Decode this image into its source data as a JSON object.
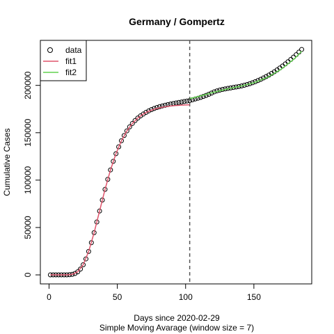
{
  "chart_data": {
    "type": "scatter",
    "title": "Germany / Gompertz",
    "xlabel": "Days since 2020-02-29",
    "subtitle": "Simple Moving Avarage (window size = 7)",
    "ylabel": "Cumulative Cases",
    "xlim": [
      -6.36,
      192.36
    ],
    "ylim": [
      -9520,
      247500
    ],
    "xticks": [
      0,
      50,
      100,
      150
    ],
    "yticks": [
      0,
      50000,
      100000,
      150000,
      200000
    ],
    "vline": 103,
    "legend": "top-left",
    "series": [
      {
        "name": "data",
        "kind": "points",
        "color": "#000000",
        "x": [
          1,
          3,
          5,
          7,
          9,
          11,
          13,
          15,
          17,
          19,
          21,
          23,
          25,
          27,
          29,
          31,
          33,
          35,
          37,
          39,
          41,
          43,
          45,
          47,
          49,
          51,
          53,
          55,
          57,
          59,
          61,
          63,
          65,
          67,
          69,
          71,
          73,
          75,
          77,
          79,
          81,
          83,
          85,
          87,
          89,
          91,
          93,
          95,
          97,
          99,
          101,
          103,
          105,
          107,
          109,
          111,
          113,
          115,
          117,
          119,
          121,
          123,
          125,
          127,
          129,
          131,
          133,
          135,
          137,
          139,
          141,
          143,
          145,
          147,
          149,
          151,
          153,
          155,
          157,
          159,
          161,
          163,
          165,
          167,
          169,
          171,
          173,
          175,
          177,
          179,
          181,
          183,
          185
        ],
        "values": [
          0,
          0,
          0,
          0,
          2,
          11,
          53,
          198,
          595,
          1495,
          3240,
          6200,
          10670,
          16860,
          24710,
          34010,
          44520,
          55800,
          67370,
          78980,
          90230,
          100840,
          110760,
          119790,
          127920,
          135120,
          141550,
          147080,
          151980,
          156180,
          159790,
          162890,
          165530,
          167800,
          169710,
          171520,
          173100,
          174460,
          175640,
          176660,
          177550,
          178330,
          179020,
          179640,
          180290,
          180880,
          181430,
          181920,
          182400,
          182950,
          183470,
          183970,
          184800,
          185600,
          186400,
          187300,
          188300,
          189400,
          190600,
          191900,
          193200,
          194200,
          195000,
          195700,
          196300,
          196800,
          197300,
          197800,
          198300,
          198800,
          199400,
          200100,
          200900,
          201800,
          202800,
          203900,
          205100,
          206400,
          207800,
          209300,
          210900,
          212600,
          214400,
          216300,
          218300,
          220400,
          222600,
          224900,
          227300,
          229800,
          232400,
          235100,
          237900
        ]
      },
      {
        "name": "fit1",
        "kind": "line",
        "color": "#DF536B",
        "x": [
          1,
          5,
          9,
          13,
          17,
          21,
          25,
          29,
          33,
          37,
          41,
          45,
          49,
          53,
          57,
          61,
          65,
          69,
          73,
          77,
          81,
          85,
          89,
          93,
          97,
          101,
          103
        ],
        "values": [
          0,
          0,
          2,
          53,
          595,
          3240,
          10670,
          24710,
          44520,
          67370,
          90230,
          110760,
          127920,
          141550,
          151980,
          159790,
          165530,
          169710,
          172700,
          174840,
          176350,
          177420,
          178190,
          178730,
          179100,
          179370,
          179470
        ]
      },
      {
        "name": "fit2",
        "kind": "line",
        "color": "#61D04F",
        "x": [
          103,
          110,
          120,
          130,
          140,
          150,
          160,
          170,
          180,
          185
        ],
        "values": [
          186000,
          188500,
          192500,
          196000,
          199000,
          202800,
          208500,
          217000,
          228500,
          236000
        ]
      }
    ]
  }
}
